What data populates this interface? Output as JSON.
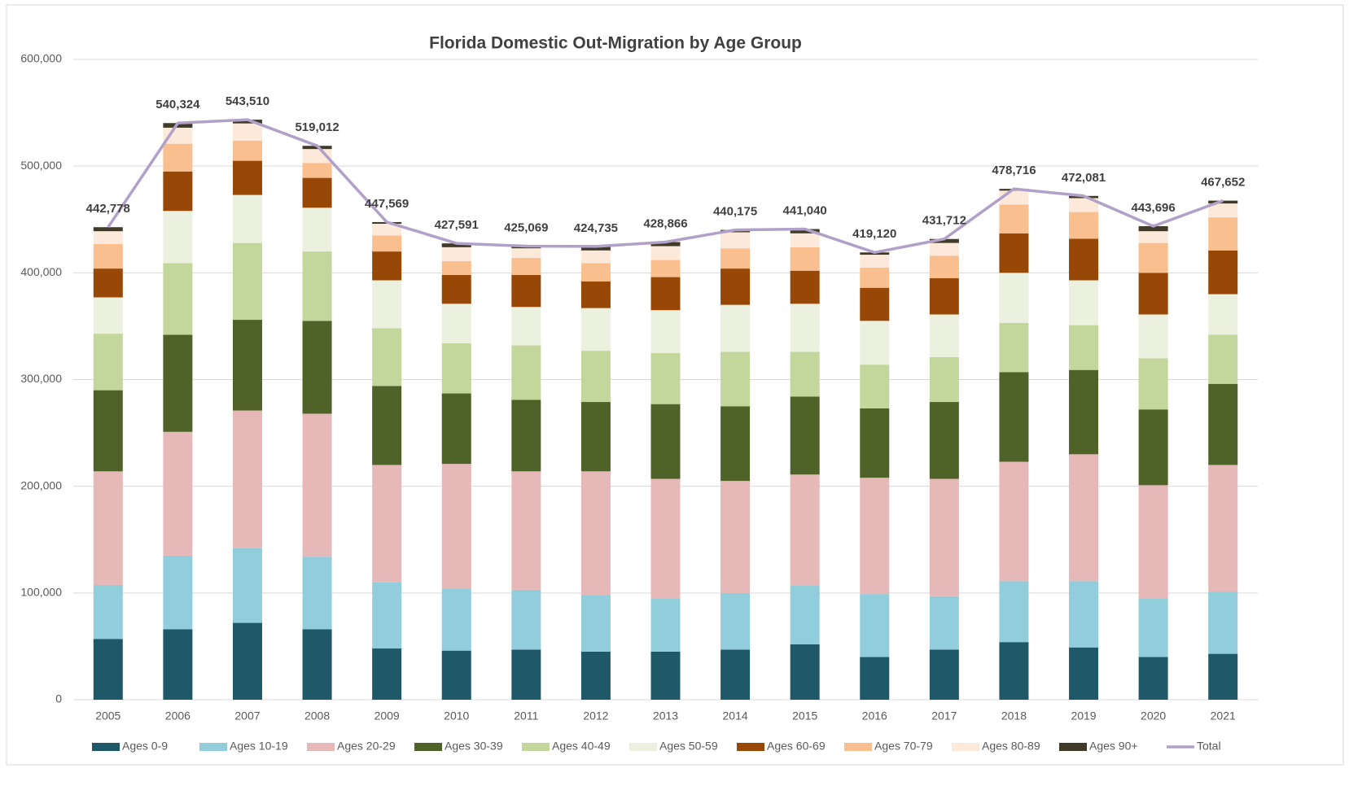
{
  "chart_data": {
    "type": "bar",
    "stacked": true,
    "title": "Florida Domestic Out-Migration by Age Group",
    "categories": [
      "2005",
      "2006",
      "2007",
      "2008",
      "2009",
      "2010",
      "2011",
      "2012",
      "2013",
      "2014",
      "2015",
      "2016",
      "2017",
      "2018",
      "2019",
      "2020",
      "2021"
    ],
    "ylim": [
      0,
      600000
    ],
    "yticks": [
      0,
      {
        "value": 100000,
        "label": "100,000"
      },
      {
        "value": 200000,
        "label": "200,000"
      },
      {
        "value": 300000,
        "label": "300,000"
      },
      {
        "value": 400000,
        "label": "400,000"
      },
      {
        "value": 500000,
        "label": "500,000"
      },
      {
        "value": 600000,
        "label": "600,000"
      }
    ],
    "grid": true,
    "legend": "bottom",
    "series": [
      {
        "name": "Ages 0-9",
        "color": "#1f5968",
        "values": [
          57000,
          66000,
          72000,
          66000,
          48000,
          46000,
          47000,
          45000,
          45000,
          47000,
          52000,
          40000,
          47000,
          54000,
          49000,
          40000,
          43000
        ]
      },
      {
        "name": "Ages 10-19",
        "color": "#92cddc",
        "values": [
          50500,
          69000,
          70000,
          68000,
          62000,
          58000,
          56000,
          53000,
          50000,
          53000,
          55000,
          59000,
          50000,
          57000,
          62000,
          55000,
          58000
        ]
      },
      {
        "name": "Ages 20-29",
        "color": "#e6b8b7",
        "values": [
          106500,
          116000,
          129000,
          134000,
          110000,
          117000,
          111000,
          116000,
          112000,
          105000,
          104000,
          109000,
          110000,
          112000,
          119000,
          106000,
          119000
        ]
      },
      {
        "name": "Ages 30-39",
        "color": "#4f6228",
        "values": [
          76000,
          91000,
          85000,
          87000,
          74000,
          66000,
          67000,
          65000,
          70000,
          70000,
          73000,
          65000,
          72000,
          84000,
          79000,
          71000,
          76000
        ]
      },
      {
        "name": "Ages 40-49",
        "color": "#c3d69b",
        "values": [
          53000,
          67000,
          72000,
          65000,
          54000,
          47000,
          51000,
          48000,
          48000,
          51000,
          42000,
          41000,
          42000,
          46000,
          42000,
          48000,
          46000
        ]
      },
      {
        "name": "Ages 50-59",
        "color": "#ebf1de",
        "values": [
          34000,
          49000,
          45000,
          41000,
          45000,
          37000,
          36000,
          40000,
          40000,
          44000,
          45000,
          41000,
          40000,
          47000,
          42000,
          41000,
          38000
        ]
      },
      {
        "name": "Ages 60-69",
        "color": "#974706",
        "values": [
          27000,
          37000,
          32000,
          28000,
          27000,
          27000,
          30000,
          25000,
          31000,
          34000,
          31000,
          31000,
          34000,
          37000,
          39000,
          39000,
          41000
        ]
      },
      {
        "name": "Ages 70-79",
        "color": "#fabf8f",
        "values": [
          23000,
          26000,
          19000,
          14000,
          15000,
          13000,
          16000,
          17000,
          16000,
          19000,
          22000,
          19000,
          21000,
          27000,
          25000,
          28000,
          31000
        ]
      },
      {
        "name": "Ages 80-89",
        "color": "#fde9d9",
        "values": [
          12000,
          15000,
          16000,
          13000,
          11000,
          13000,
          9000,
          12000,
          13000,
          15000,
          13000,
          12000,
          12000,
          13000,
          13000,
          11000,
          13000
        ]
      },
      {
        "name": "Ages 90+",
        "color": "#403b28",
        "values": [
          3778,
          4324,
          3510,
          3012,
          1569,
          3591,
          2069,
          3735,
          3866,
          2175,
          4040,
          2120,
          3712,
          1716,
          2081,
          4696,
          2652
        ]
      },
      {
        "name": "Total",
        "color": "#b1a0c7",
        "type": "line",
        "values": [
          442778,
          540324,
          543510,
          519012,
          447569,
          427591,
          425069,
          424735,
          428866,
          440175,
          441040,
          419120,
          431712,
          478716,
          472081,
          443696,
          467652
        ],
        "value_labels": [
          "442,778",
          "540,324",
          "543,510",
          "519,012",
          "447,569",
          "427,591",
          "425,069",
          "424,735",
          "428,866",
          "440,175",
          "441,040",
          "419,120",
          "431,712",
          "478,716",
          "472,081",
          "443,696",
          "467,652"
        ]
      }
    ]
  }
}
